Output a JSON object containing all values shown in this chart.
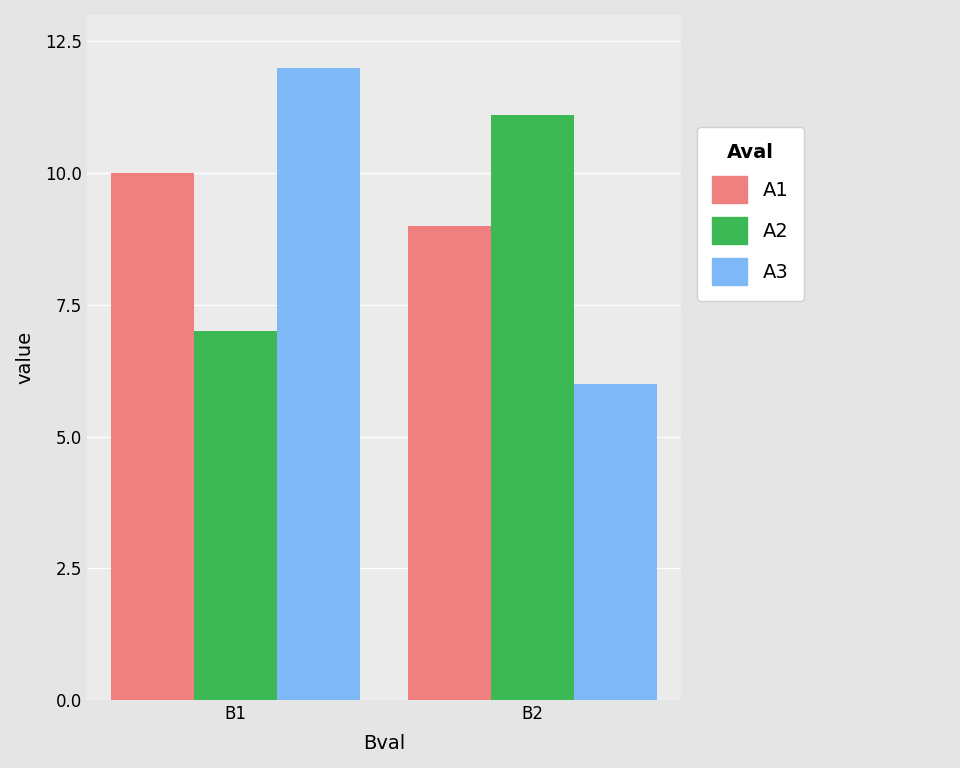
{
  "title": "",
  "xlabel": "Bval",
  "ylabel": "value",
  "legend_title": "Aval",
  "categories": [
    "B1",
    "B2"
  ],
  "groups": [
    "A1",
    "A2",
    "A3"
  ],
  "values": {
    "B1": {
      "A1": 10.0,
      "A2": 7.0,
      "A3": 12.0
    },
    "B2": {
      "A1": 9.0,
      "A2": 11.1,
      "A3": 6.0
    }
  },
  "colors": {
    "A1": "#F08080",
    "A2": "#3CB954",
    "A3": "#7EB8F7"
  },
  "ylim": [
    0,
    13.0
  ],
  "yticks": [
    0.0,
    2.5,
    5.0,
    7.5,
    10.0,
    12.5
  ],
  "ytick_labels": [
    "0.0",
    "2.5",
    "5.0",
    "7.5",
    "10.0",
    "12.5"
  ],
  "panel_background": "#EBEBEB",
  "outer_background": "#E5E5E5",
  "grid_color": "#FFFFFF",
  "bar_width": 0.28,
  "legend_fontsize": 14,
  "legend_title_fontsize": 14,
  "axis_label_fontsize": 14,
  "tick_fontsize": 12
}
